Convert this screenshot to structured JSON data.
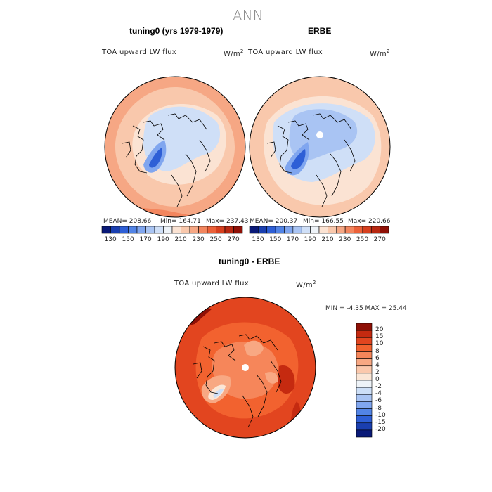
{
  "figure": {
    "title": "ANN"
  },
  "panels": [
    {
      "title": "tuning0 (yrs 1979-1979)",
      "variable": "TOA upward LW flux",
      "units_base": "W/m",
      "units_exp": "2",
      "stats": {
        "mean": "MEAN= 208.66",
        "min": "Min= 164.71",
        "max": "Max= 237.43"
      }
    },
    {
      "title": "ERBE",
      "variable": "TOA upward LW flux",
      "units_base": "W/m",
      "units_exp": "2",
      "stats": {
        "mean": "MEAN= 200.37",
        "min": "Min= 166.55",
        "max": "Max= 220.66"
      }
    },
    {
      "title": "tuning0 - ERBE",
      "variable": "TOA upward LW flux",
      "units_base": "W/m",
      "units_exp": "2",
      "stats": {
        "minmax": "MIN =   -4.35 MAX =   25.44"
      }
    }
  ],
  "colorbar_abs": {
    "ticks": [
      "130",
      "150",
      "170",
      "190",
      "210",
      "230",
      "250",
      "270"
    ],
    "colors": [
      "#0a1a78",
      "#1a3fb0",
      "#2e5fd6",
      "#5284e6",
      "#80a6ef",
      "#a9c4f3",
      "#cfdff7",
      "#eef3f8",
      "#fbe3d3",
      "#f9c8ac",
      "#f6a784",
      "#f3865e",
      "#eb6139",
      "#d7401f",
      "#b82811",
      "#8f1006"
    ]
  },
  "colorbar_diff": {
    "ticks": [
      "20",
      "15",
      "10",
      "8",
      "6",
      "4",
      "2",
      "0",
      "-2",
      "-4",
      "-6",
      "-8",
      "-10",
      "-15",
      "-20"
    ],
    "colors": [
      "#8f1006",
      "#c52a10",
      "#e2451f",
      "#f2622f",
      "#f6865a",
      "#f8a883",
      "#fbc8ac",
      "#fbe6d6",
      "#eef3f8",
      "#cddff7",
      "#a9c4f3",
      "#80a6ef",
      "#5284e6",
      "#2e5fd6",
      "#1a3fb0",
      "#0a1a78"
    ]
  }
}
